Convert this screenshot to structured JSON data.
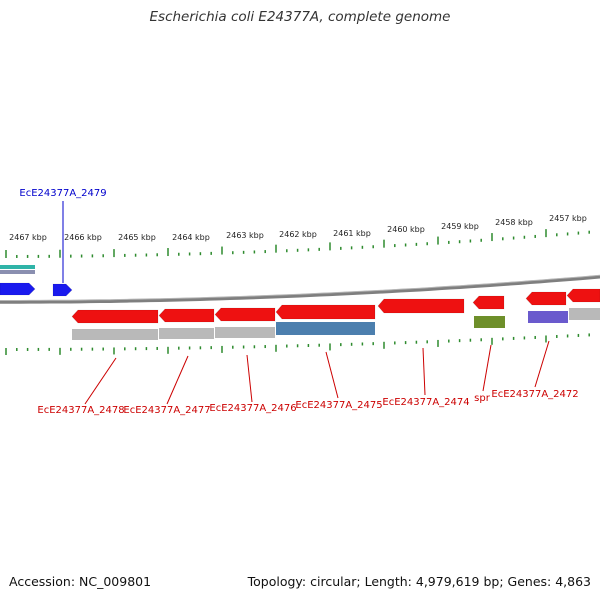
{
  "title": "Escherichia coli E24377A, complete genome",
  "accession_text": "Accession: NC_009801",
  "summary_text": "Topology: circular; Length: 4,979,619 bp; Genes: 4,863",
  "colors": {
    "backbone": "#7f7f7f",
    "tick": "#2e8b2e",
    "kbp_text": "#222222",
    "gene_red": "#ee1111",
    "gene_blue": "#1a1aee",
    "label_red": "#cc0000",
    "label_blue": "#0000cc",
    "feature_gray": "#b9b9b9",
    "feature_steelblue": "#4c7fae",
    "feature_olive": "#6e8f2a",
    "feature_purple": "#6a5acd",
    "feature_teal": "#2fb4a8"
  },
  "scale": {
    "unit": "kbp",
    "major_labels": [
      "2467 kbp",
      "2466 kbp",
      "2465 kbp",
      "2464 kbp",
      "2463 kbp",
      "2462 kbp",
      "2461 kbp",
      "2460 kbp",
      "2459 kbp",
      "2458 kbp",
      "2457 kbp"
    ]
  },
  "genes": [
    {
      "name": "EcE24377A_2479",
      "strand": "+",
      "color_key": "gene_blue",
      "label_key": "label_blue"
    },
    {
      "name": "EcE24377A_2478",
      "strand": "-",
      "color_key": "gene_red",
      "label_key": "label_red"
    },
    {
      "name": "EcE24377A_2477",
      "strand": "-",
      "color_key": "gene_red",
      "label_key": "label_red"
    },
    {
      "name": "EcE24377A_2476",
      "strand": "-",
      "color_key": "gene_red",
      "label_key": "label_red"
    },
    {
      "name": "EcE24377A_2475",
      "strand": "-",
      "color_key": "gene_red",
      "label_key": "label_red"
    },
    {
      "name": "EcE24377A_2474",
      "strand": "-",
      "color_key": "gene_red",
      "label_key": "label_red"
    },
    {
      "name": "spr",
      "strand": "-",
      "color_key": "gene_red",
      "label_key": "label_red"
    },
    {
      "name": "EcE24377A_2472",
      "strand": "-",
      "color_key": "gene_red",
      "label_key": "label_red"
    }
  ]
}
